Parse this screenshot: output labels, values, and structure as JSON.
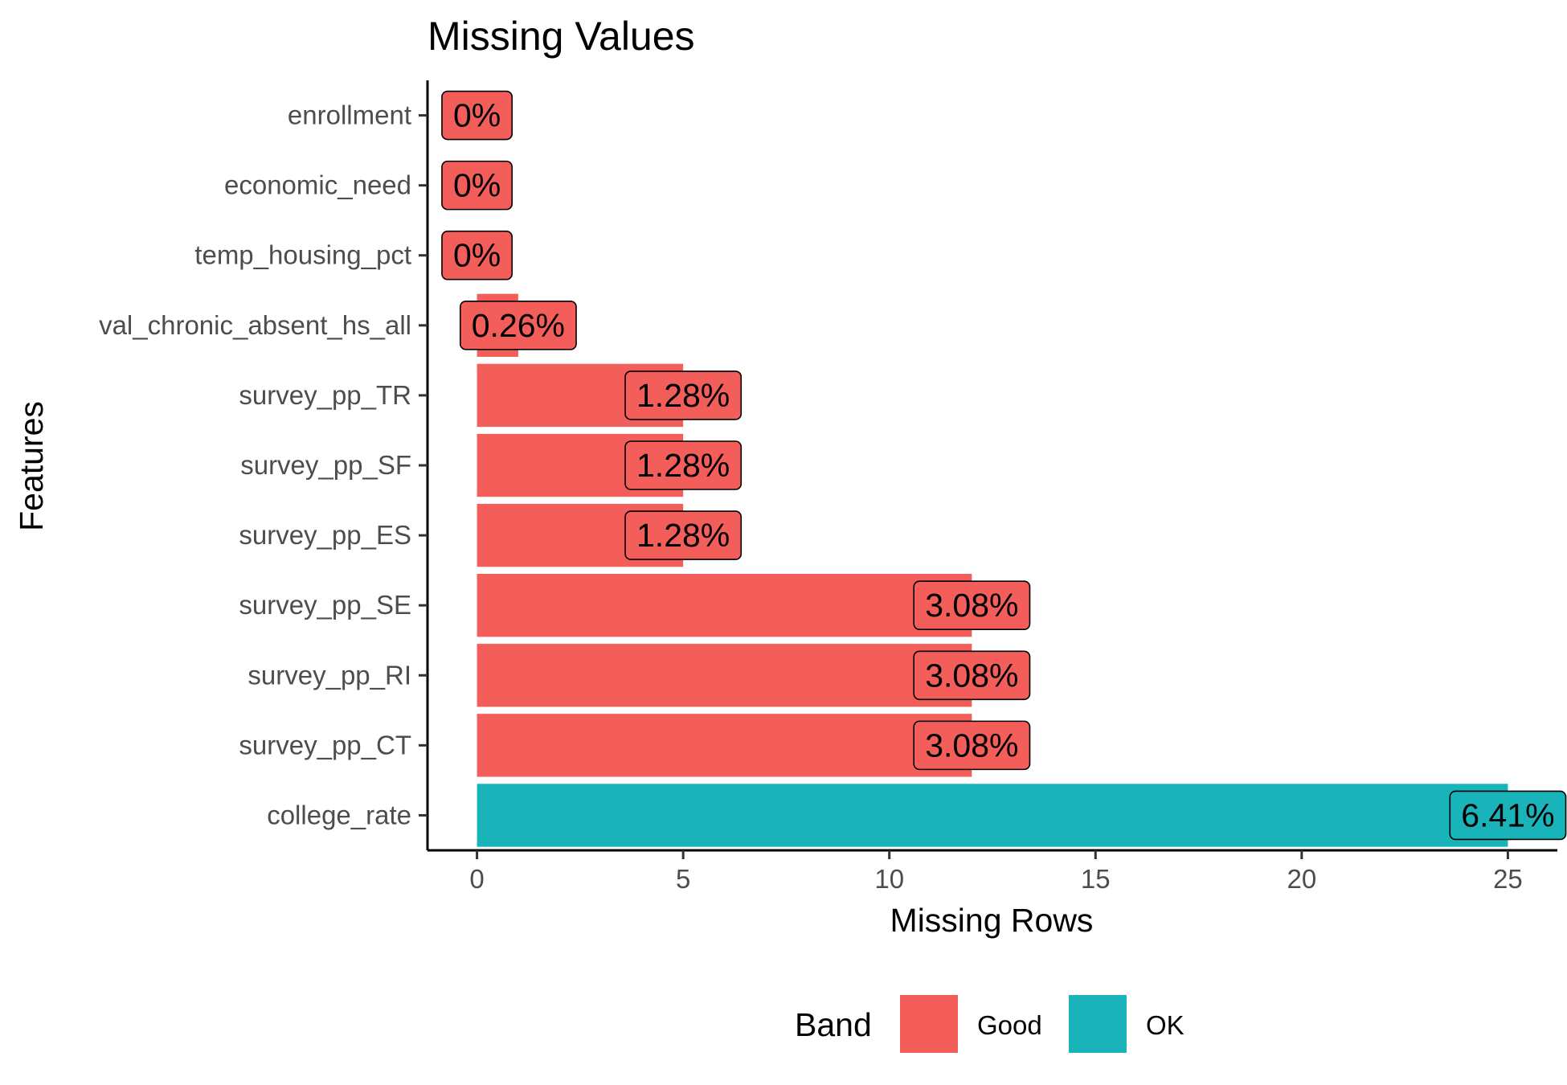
{
  "chart_data": {
    "type": "bar",
    "orientation": "horizontal",
    "title": "Missing Values",
    "xlabel": "Missing Rows",
    "ylabel": "Features",
    "xlim": [
      -1.2,
      26.2
    ],
    "xticks": [
      0,
      5,
      10,
      15,
      20,
      25
    ],
    "grid": false,
    "legend": {
      "title": "Band",
      "position": "bottom",
      "items": [
        {
          "label": "Good",
          "color": "#F35E5A"
        },
        {
          "label": "OK",
          "color": "#19B4B9"
        }
      ]
    },
    "categories": [
      "enrollment",
      "economic_need",
      "temp_housing_pct",
      "val_chronic_absent_hs_all",
      "survey_pp_TR",
      "survey_pp_SF",
      "survey_pp_ES",
      "survey_pp_SE",
      "survey_pp_RI",
      "survey_pp_CT",
      "college_rate"
    ],
    "values": [
      0,
      0,
      0,
      1,
      5,
      5,
      5,
      12,
      12,
      12,
      25
    ],
    "labels": [
      "0%",
      "0%",
      "0%",
      "0.26%",
      "1.28%",
      "1.28%",
      "1.28%",
      "3.08%",
      "3.08%",
      "3.08%",
      "6.41%"
    ],
    "bands": [
      "Good",
      "Good",
      "Good",
      "Good",
      "Good",
      "Good",
      "Good",
      "Good",
      "Good",
      "Good",
      "OK"
    ]
  }
}
